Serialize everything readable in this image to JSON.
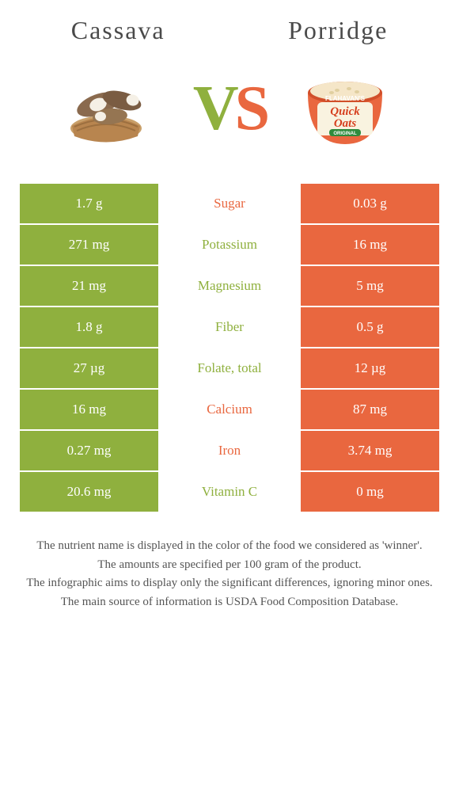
{
  "left_food": {
    "title": "Cassava"
  },
  "right_food": {
    "title": "Porridge"
  },
  "vs": {
    "v": "V",
    "s": "S"
  },
  "colors": {
    "left": "#8fb03e",
    "right": "#e9673f",
    "text": "#4a4a4a"
  },
  "rows": [
    {
      "label": "Sugar",
      "left": "1.7 g",
      "right": "0.03 g",
      "winner": "right"
    },
    {
      "label": "Potassium",
      "left": "271 mg",
      "right": "16 mg",
      "winner": "left"
    },
    {
      "label": "Magnesium",
      "left": "21 mg",
      "right": "5 mg",
      "winner": "left"
    },
    {
      "label": "Fiber",
      "left": "1.8 g",
      "right": "0.5 g",
      "winner": "left"
    },
    {
      "label": "Folate, total",
      "left": "27 µg",
      "right": "12 µg",
      "winner": "left"
    },
    {
      "label": "Calcium",
      "left": "16 mg",
      "right": "87 mg",
      "winner": "right"
    },
    {
      "label": "Iron",
      "left": "0.27 mg",
      "right": "3.74 mg",
      "winner": "right"
    },
    {
      "label": "Vitamin C",
      "left": "20.6 mg",
      "right": "0 mg",
      "winner": "left"
    }
  ],
  "footer": {
    "line1": "The nutrient name is displayed in the color of the food we considered as 'winner'.",
    "line2": "The amounts are specified per 100 gram of the product.",
    "line3": "The infographic aims to display only the significant differences, ignoring minor ones.",
    "line4": "The main source of information is USDA Food Composition Database."
  },
  "porridge_label": {
    "brand": "FLAHAVAN'S",
    "product1": "Quick",
    "product2": "Oats",
    "tag": "ORIGINAL"
  }
}
